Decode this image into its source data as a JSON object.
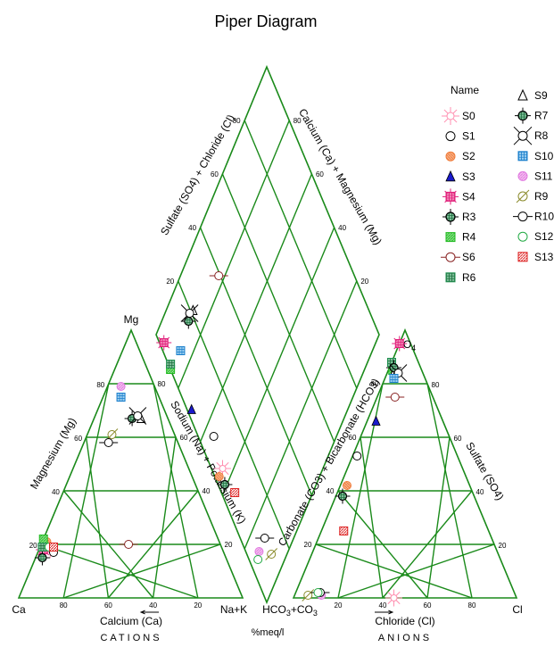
{
  "chart_data": {
    "type": "scatter",
    "subtype": "piper",
    "title": "Piper Diagram",
    "unit_label": "%meq/l",
    "cation_title": "CATIONS",
    "anion_title": "ANIONS",
    "cation_triangle": {
      "corners": {
        "left": "Ca",
        "top": "Mg",
        "right": "Na+K"
      },
      "axis_labels": {
        "bottom": "Calcium (Ca)",
        "left": "Magnesium (Mg)",
        "right": "Sodium (Na) + Potassium (K)"
      }
    },
    "anion_triangle": {
      "corners": {
        "left": "HCO3+CO3",
        "top": "SO4",
        "right": "Cl"
      },
      "axis_labels": {
        "bottom": "Chloride (Cl)",
        "left": "Carbonate (CO3) + Bicarbonate (HCO3)",
        "right": "Sulfate (SO4)"
      }
    },
    "diamond": {
      "axis_labels": {
        "upper_left": "Sulfate (SO4) + Chloride (Cl)",
        "upper_right": "Calcium (Ca) + Magnesium (Mg)"
      }
    },
    "ticks": [
      "20",
      "40",
      "60",
      "80"
    ],
    "legend_title": "Name",
    "series": [
      {
        "name": "S0",
        "symbol": "star",
        "color": "#ff8fb0",
        "ca": 77,
        "mg": 18,
        "cl": 45,
        "so4": 0
      },
      {
        "name": "S1",
        "symbol": "circle-open",
        "color": "#000000",
        "ca": 76,
        "mg": 17,
        "cl": 2,
        "so4": 53
      },
      {
        "name": "S2",
        "symbol": "circle-hatch",
        "color": "#f07d3c",
        "ca": 77,
        "mg": 21,
        "cl": 3,
        "so4": 42
      },
      {
        "name": "S3",
        "symbol": "triangle",
        "color": "#1a1acc",
        "ca": 80,
        "mg": 18,
        "cl": 4,
        "so4": 66
      },
      {
        "name": "S4",
        "symbol": "square-hatch",
        "color": "#e0207a",
        "ca": 80,
        "mg": 18,
        "cl": 0,
        "so4": 95
      },
      {
        "name": "R3",
        "symbol": "circle-cross",
        "color": "#000000",
        "ca": 82,
        "mg": 15,
        "cl": 3,
        "so4": 38
      },
      {
        "name": "R4",
        "symbol": "square-half",
        "color": "#22bb22",
        "ca": 78,
        "mg": 22,
        "cl": 2,
        "so4": 85
      },
      {
        "name": "S6",
        "symbol": "circle-line",
        "color": "#882222",
        "ca": 41,
        "mg": 20,
        "cl": 8,
        "so4": 75
      },
      {
        "name": "R6",
        "symbol": "square-grid",
        "color": "#1f8f4f",
        "ca": 80,
        "mg": 19,
        "cl": 0,
        "so4": 88
      },
      {
        "name": "S9",
        "symbol": "triangle-open",
        "color": "#000000",
        "ca": 12,
        "mg": 67,
        "cl": 3,
        "so4": 85
      },
      {
        "name": "R7",
        "symbol": "circle-cross",
        "color": "#000000",
        "ca": 16,
        "mg": 67,
        "cl": 2,
        "so4": 86
      },
      {
        "name": "R8",
        "symbol": "circle-x",
        "color": "#000000",
        "ca": 13,
        "mg": 68,
        "cl": 5,
        "so4": 84
      },
      {
        "name": "S10",
        "symbol": "grid-blue",
        "color": "#1a7fcc",
        "ca": 17,
        "mg": 75,
        "cl": 4,
        "so4": 82
      },
      {
        "name": "S11",
        "symbol": "circle-pink",
        "color": "#e07ae0",
        "ca": 15,
        "mg": 79,
        "cl": 12,
        "so4": 1
      },
      {
        "name": "R9",
        "symbol": "circle-slash",
        "color": "#8a8a2a",
        "ca": 28,
        "mg": 61,
        "cl": 6,
        "so4": 1
      },
      {
        "name": "R10",
        "symbol": "circle-line",
        "color": "#000000",
        "ca": 31,
        "mg": 58,
        "cl": 11,
        "so4": 2
      },
      {
        "name": "S12",
        "symbol": "circle-open",
        "color": "#22aa44",
        "ca": 77,
        "mg": 19,
        "cl": 10,
        "so4": 2
      },
      {
        "name": "S13",
        "symbol": "square-hatch",
        "color": "#dd2222",
        "ca": 75,
        "mg": 19,
        "cl": 10,
        "so4": 25
      }
    ]
  }
}
